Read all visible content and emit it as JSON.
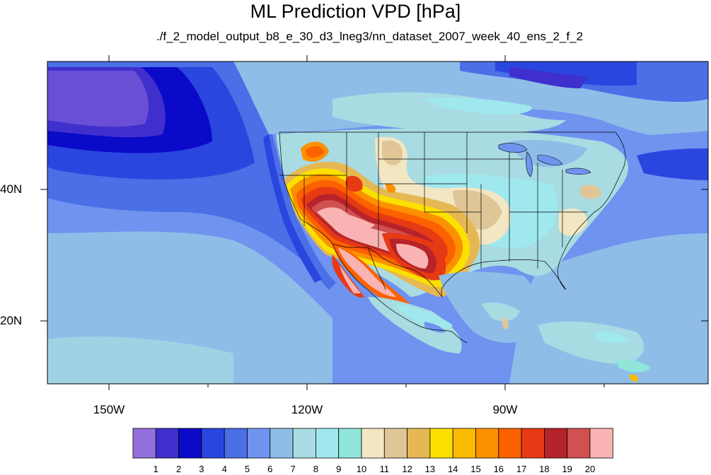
{
  "title": "ML Prediction VPD [hPa]",
  "subtitle": "./f_2_model_output_b8_e_30_d3_lneg3/nn_dataset_2007_week_40_ens_2_f_2",
  "axes": {
    "longitude_labels": [
      "150W",
      "120W",
      "90W"
    ],
    "latitude_labels": [
      "40N",
      "20N"
    ]
  },
  "colorbar": {
    "labels": [
      "1",
      "2",
      "3",
      "4",
      "5",
      "6",
      "7",
      "8",
      "9",
      "10",
      "11",
      "12",
      "13",
      "14",
      "15",
      "16",
      "17",
      "18",
      "19",
      "20"
    ],
    "colors": [
      "#9370db",
      "#3f2fcc",
      "#0a0ac8",
      "#2a46de",
      "#4a6fe6",
      "#6f93ef",
      "#8fbde8",
      "#a8dbe2",
      "#9fe8ee",
      "#8fe6d9",
      "#f3e6c3",
      "#e0c696",
      "#e6b853",
      "#fce100",
      "#fcba00",
      "#fc9100",
      "#fc6100",
      "#e63a14",
      "#b7232a",
      "#d15050",
      "#f9b3b3"
    ]
  }
}
